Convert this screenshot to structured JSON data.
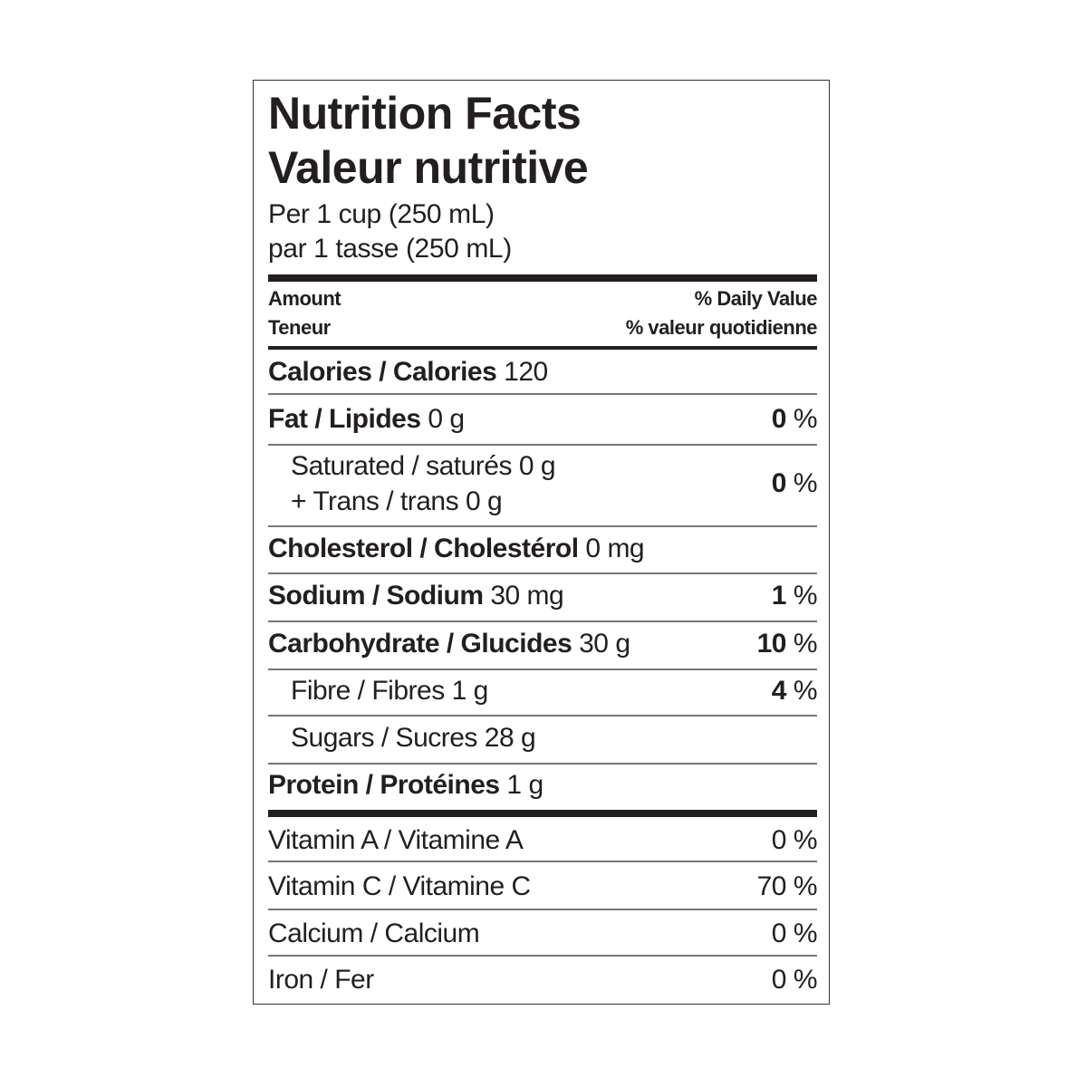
{
  "title_en": "Nutrition Facts",
  "title_fr": "Valeur nutritive",
  "serving_en": "Per 1 cup (250 mL)",
  "serving_fr": "par 1 tasse (250 mL)",
  "header": {
    "amount_en": "Amount",
    "amount_fr": "Teneur",
    "dv_en": "% Daily Value",
    "dv_fr": "% valeur quotidienne"
  },
  "nutrients": {
    "calories": {
      "label": "Calories / Calories",
      "amount": "120"
    },
    "fat": {
      "label": "Fat / Lipides",
      "amount": "0 g",
      "dv": "0",
      "unit": "%"
    },
    "saturated": {
      "label": "Saturated / saturés",
      "amount": "0 g",
      "label2": "+ Trans / trans",
      "amount2": "0 g",
      "dv": "0",
      "unit": "%"
    },
    "cholesterol": {
      "label": "Cholesterol / Cholestérol",
      "amount": "0 mg"
    },
    "sodium": {
      "label": "Sodium / Sodium",
      "amount": "30 mg",
      "dv": "1",
      "unit": "%"
    },
    "carbohydrate": {
      "label": "Carbohydrate / Glucides",
      "amount": "30 g",
      "dv": "10",
      "unit": "%"
    },
    "fibre": {
      "label": "Fibre / Fibres",
      "amount": "1 g",
      "dv": "4",
      "unit": "%"
    },
    "sugars": {
      "label": "Sugars / Sucres",
      "amount": "28 g"
    },
    "protein": {
      "label": "Protein / Protéines",
      "amount": "1 g"
    }
  },
  "vitamins": [
    {
      "label": "Vitamin A / Vitamine A",
      "dv": "0 %"
    },
    {
      "label": "Vitamin C / Vitamine C",
      "dv": "70 %"
    },
    {
      "label": "Calcium / Calcium",
      "dv": "0 %"
    },
    {
      "label": "Iron / Fer",
      "dv": "0 %"
    }
  ]
}
